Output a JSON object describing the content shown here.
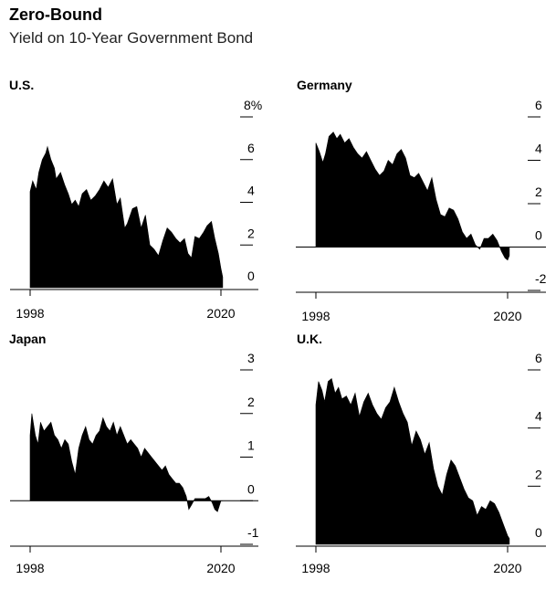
{
  "header": {
    "title": "Zero-Bound",
    "subtitle": "Yield on 10-Year Government Bond"
  },
  "colors": {
    "fill": "#000000",
    "axis": "#000000",
    "text": "#000000"
  },
  "chart_data": [
    {
      "type": "area",
      "title": "U.S.",
      "x_ticks": [
        "1998",
        "2020"
      ],
      "y_ticks": [
        "8%",
        "6",
        "4",
        "2",
        "0"
      ],
      "y_tick_values": [
        8,
        6,
        4,
        2,
        0
      ],
      "xlim": [
        1998,
        2020
      ],
      "ylim": [
        0,
        8
      ],
      "series": [
        {
          "x": [
            1998,
            1998.3,
            1998.7,
            1999,
            1999.4,
            1999.8,
            2000,
            2000.4,
            2000.8,
            2001,
            2001.5,
            2002,
            2002.4,
            2002.8,
            2003.2,
            2003.6,
            2004,
            2004.5,
            2005,
            2005.5,
            2006,
            2006.5,
            2007,
            2007.5,
            2008,
            2008.4,
            2008.9,
            2009.2,
            2009.8,
            2010.3,
            2010.8,
            2011.3,
            2011.8,
            2012.3,
            2012.8,
            2013.3,
            2013.8,
            2014.3,
            2014.8,
            2015.3,
            2015.8,
            2016.2,
            2016.6,
            2017,
            2017.5,
            2018,
            2018.4,
            2018.9,
            2019.3,
            2019.7,
            2020,
            2020.2
          ],
          "values": [
            4.5,
            5.0,
            4.6,
            5.4,
            6.0,
            6.3,
            6.6,
            6.0,
            5.6,
            5.1,
            5.4,
            4.8,
            4.4,
            3.9,
            4.1,
            3.8,
            4.4,
            4.6,
            4.1,
            4.3,
            4.6,
            5.0,
            4.7,
            5.1,
            3.9,
            4.2,
            2.8,
            3.0,
            3.7,
            3.8,
            2.8,
            3.4,
            2.0,
            1.8,
            1.5,
            2.2,
            2.8,
            2.6,
            2.3,
            2.1,
            2.3,
            1.6,
            1.4,
            2.4,
            2.3,
            2.6,
            2.9,
            3.1,
            2.3,
            1.6,
            0.9,
            0.5
          ]
        }
      ]
    },
    {
      "type": "area",
      "title": "Germany",
      "x_ticks": [
        "1998",
        "2020"
      ],
      "y_ticks": [
        "6",
        "4",
        "2",
        "0",
        "-2"
      ],
      "y_tick_values": [
        6,
        4,
        2,
        0,
        -2
      ],
      "xlim": [
        1998,
        2020
      ],
      "ylim": [
        -2,
        6
      ],
      "series": [
        {
          "x": [
            1998,
            1998.4,
            1998.8,
            1999.1,
            1999.5,
            2000,
            2000.4,
            2000.8,
            2001.3,
            2001.8,
            2002.3,
            2002.8,
            2003.3,
            2003.8,
            2004.3,
            2004.8,
            2005.3,
            2005.8,
            2006.3,
            2006.8,
            2007.3,
            2007.8,
            2008.3,
            2008.8,
            2009.3,
            2009.8,
            2010.3,
            2010.8,
            2011.3,
            2011.8,
            2012.3,
            2012.8,
            2013.3,
            2013.8,
            2014.3,
            2014.8,
            2015.3,
            2015.8,
            2016.3,
            2016.8,
            2017.3,
            2017.8,
            2018.3,
            2018.8,
            2019.3,
            2019.7,
            2020,
            2020.2
          ],
          "values": [
            4.8,
            4.4,
            3.9,
            4.3,
            5.1,
            5.3,
            5.0,
            5.2,
            4.8,
            5.0,
            4.6,
            4.3,
            4.1,
            4.4,
            4.0,
            3.6,
            3.3,
            3.5,
            4.0,
            3.8,
            4.3,
            4.5,
            4.1,
            3.3,
            3.2,
            3.4,
            3.0,
            2.6,
            3.2,
            2.2,
            1.5,
            1.4,
            1.8,
            1.7,
            1.3,
            0.7,
            0.4,
            0.6,
            0.1,
            -0.1,
            0.4,
            0.4,
            0.6,
            0.3,
            -0.2,
            -0.5,
            -0.6,
            -0.4
          ]
        }
      ]
    },
    {
      "type": "area",
      "title": "Japan",
      "x_ticks": [
        "1998",
        "2020"
      ],
      "y_ticks": [
        "3",
        "2",
        "1",
        "0",
        "-1"
      ],
      "y_tick_values": [
        3,
        2,
        1,
        0,
        -1
      ],
      "xlim": [
        1998,
        2020
      ],
      "ylim": [
        -1,
        3
      ],
      "series": [
        {
          "x": [
            1998,
            1998.2,
            1998.6,
            1998.9,
            1999.2,
            1999.6,
            2000,
            2000.4,
            2000.8,
            2001.2,
            2001.6,
            2002,
            2002.4,
            2002.8,
            2003.2,
            2003.6,
            2004,
            2004.4,
            2004.8,
            2005.2,
            2005.6,
            2006,
            2006.4,
            2006.8,
            2007.2,
            2007.6,
            2008,
            2008.4,
            2008.8,
            2009.2,
            2009.6,
            2010,
            2010.4,
            2010.8,
            2011.2,
            2011.6,
            2012,
            2012.4,
            2012.8,
            2013.2,
            2013.6,
            2014,
            2014.4,
            2014.8,
            2015.2,
            2015.6,
            2016,
            2016.3,
            2016.6,
            2017,
            2017.4,
            2017.8,
            2018.2,
            2018.6,
            2019,
            2019.3,
            2019.6,
            2020,
            2020.2
          ],
          "values": [
            1.5,
            2.0,
            1.5,
            1.3,
            1.8,
            1.6,
            1.7,
            1.8,
            1.5,
            1.4,
            1.2,
            1.4,
            1.3,
            0.9,
            0.6,
            1.2,
            1.5,
            1.7,
            1.4,
            1.3,
            1.5,
            1.6,
            1.9,
            1.7,
            1.6,
            1.8,
            1.5,
            1.7,
            1.5,
            1.3,
            1.4,
            1.3,
            1.2,
            1.0,
            1.2,
            1.1,
            1.0,
            0.9,
            0.8,
            0.7,
            0.8,
            0.6,
            0.5,
            0.4,
            0.4,
            0.3,
            0.1,
            -0.2,
            -0.1,
            0.05,
            0.05,
            0.05,
            0.05,
            0.1,
            -0.05,
            -0.2,
            -0.25,
            0.0,
            0.0
          ]
        }
      ]
    },
    {
      "type": "area",
      "title": "U.K.",
      "x_ticks": [
        "1998",
        "2020"
      ],
      "y_ticks": [
        "6",
        "4",
        "2",
        "0"
      ],
      "y_tick_values": [
        6,
        4,
        2,
        0
      ],
      "xlim": [
        1998,
        2020
      ],
      "ylim": [
        0,
        6
      ],
      "series": [
        {
          "x": [
            1998,
            1998.3,
            1998.7,
            1999,
            1999.4,
            1999.8,
            2000.2,
            2000.6,
            2001,
            2001.5,
            2002,
            2002.5,
            2003,
            2003.5,
            2004,
            2004.5,
            2005,
            2005.5,
            2006,
            2006.5,
            2007,
            2007.5,
            2008,
            2008.5,
            2009,
            2009.5,
            2010,
            2010.5,
            2011,
            2011.5,
            2012,
            2012.5,
            2013,
            2013.5,
            2014,
            2014.5,
            2015,
            2015.5,
            2016,
            2016.5,
            2017,
            2017.5,
            2018,
            2018.5,
            2019,
            2019.5,
            2020,
            2020.2
          ],
          "values": [
            4.8,
            5.6,
            5.3,
            4.9,
            5.6,
            5.7,
            5.2,
            5.4,
            5.0,
            5.1,
            4.8,
            5.2,
            4.4,
            4.9,
            5.2,
            4.8,
            4.5,
            4.3,
            4.7,
            4.9,
            5.4,
            4.9,
            4.5,
            4.2,
            3.4,
            3.9,
            3.6,
            3.1,
            3.5,
            2.6,
            2.0,
            1.7,
            2.4,
            2.9,
            2.7,
            2.3,
            1.9,
            1.6,
            1.5,
            1.0,
            1.3,
            1.2,
            1.5,
            1.4,
            1.1,
            0.7,
            0.3,
            0.2
          ]
        }
      ]
    }
  ]
}
